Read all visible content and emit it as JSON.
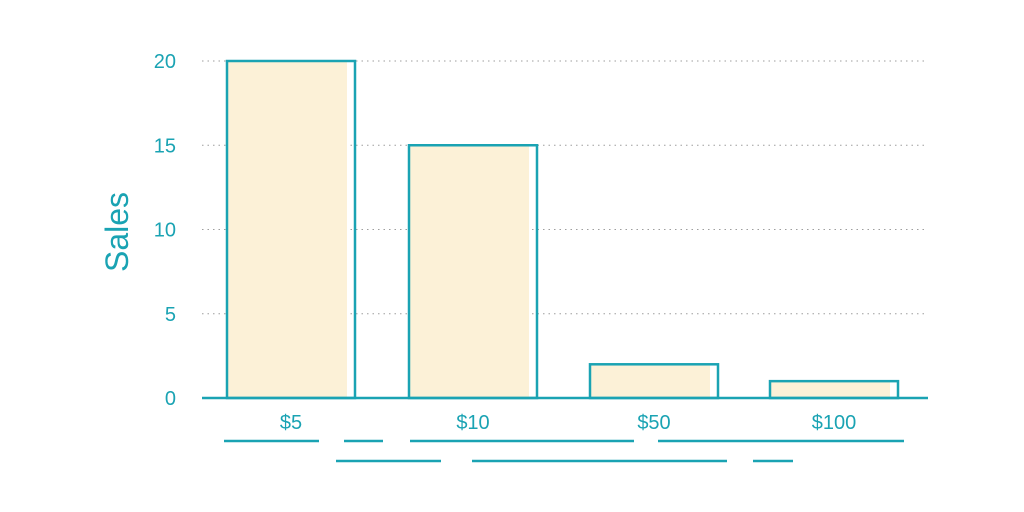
{
  "colors": {
    "accent": "#1aa3b3",
    "bar_fill": "#fcf1d7",
    "grid": "#9e9e9e",
    "background": "#ffffff"
  },
  "chart_data": {
    "type": "bar",
    "categories": [
      "$5",
      "$10",
      "$50",
      "$100"
    ],
    "values": [
      20,
      15,
      2,
      1
    ],
    "title": "",
    "xlabel": "",
    "ylabel": "Sales",
    "ylim": [
      0,
      20
    ],
    "yticks": [
      0,
      5,
      10,
      15,
      20
    ],
    "grid": "horizontal dotted",
    "legend": "none"
  }
}
